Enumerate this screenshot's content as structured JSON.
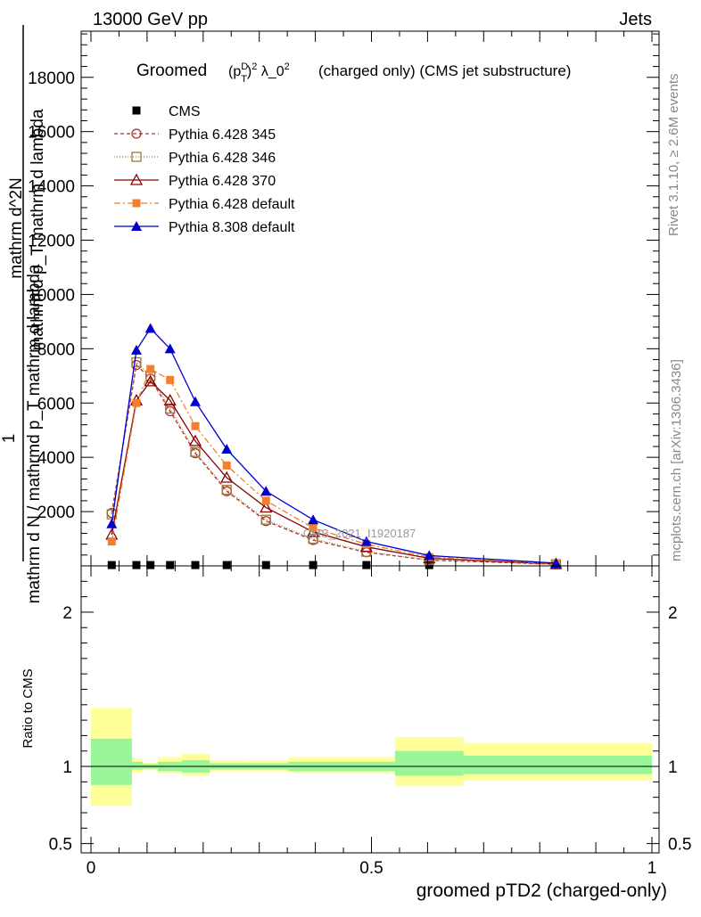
{
  "header": {
    "energy": "13000 GeV pp",
    "process": "Jets"
  },
  "side_labels": {
    "rivet": "Rivet 3.1.10, ≥ 2.6M events",
    "mcplots": "mcplots.cern.ch [arXiv:1306.3436]"
  },
  "chart_data": [
    {
      "type": "line",
      "title_main": "Groomed",
      "title_math": "(p_T^D)^2 λ_0^2",
      "title_rest": "(charged only) (CMS jet substructure)",
      "ylabel_numerator": "1",
      "ylabel_denominator": "mathrm d N / mathrmd p_T mathrm d lambda",
      "ylabel_overlap": "mathrm d^2N",
      "ylabel_overlap2": "mathrm d p_T mathrm d lambda",
      "ylim": [
        0,
        19700
      ],
      "yticks": [
        2000,
        4000,
        6000,
        8000,
        10000,
        12000,
        14000,
        16000,
        18000
      ],
      "ytick_labels": [
        "2000",
        "4000",
        "6000",
        "8000",
        "10000",
        "12000",
        "14000",
        "16000",
        "18000"
      ],
      "watermark": "CMS_2021_I1920187",
      "grid": false,
      "legend_position": "top-left",
      "series": [
        {
          "name": "CMS",
          "color": "#000000",
          "marker": "square-filled",
          "x": [
            0.037,
            0.081,
            0.106,
            0.141,
            0.186,
            0.242,
            0.312,
            0.396,
            0.491,
            0.603,
            0.829
          ],
          "y": [
            30,
            30,
            30,
            30,
            30,
            30,
            30,
            30,
            30,
            30,
            30
          ]
        },
        {
          "name": "Pythia 6.428 345",
          "color": "#b03030",
          "dash": "4,3",
          "marker": "circle-open",
          "x": [
            0.037,
            0.081,
            0.106,
            0.141,
            0.186,
            0.242,
            0.312,
            0.396,
            0.491,
            0.603,
            0.829
          ],
          "y": [
            1950,
            7400,
            6900,
            5700,
            4150,
            2750,
            1650,
            950,
            500,
            210,
            60
          ]
        },
        {
          "name": "Pythia 6.428 346",
          "color": "#9b7a3a",
          "dash": "1,2",
          "marker": "square-open",
          "x": [
            0.037,
            0.081,
            0.106,
            0.141,
            0.186,
            0.242,
            0.312,
            0.396,
            0.491,
            0.603,
            0.829
          ],
          "y": [
            1900,
            7500,
            7000,
            5800,
            4200,
            2800,
            1700,
            1000,
            520,
            220,
            60
          ]
        },
        {
          "name": "Pythia 6.428 370",
          "color": "#8b0000",
          "dash": "",
          "marker": "triangle-open",
          "x": [
            0.037,
            0.081,
            0.106,
            0.141,
            0.186,
            0.242,
            0.312,
            0.396,
            0.491,
            0.603,
            0.829
          ],
          "y": [
            1150,
            6100,
            6800,
            6100,
            4600,
            3250,
            2150,
            1250,
            700,
            280,
            70
          ]
        },
        {
          "name": "Pythia 6.428 default",
          "color": "#f08030",
          "dash": "7,3,2,3",
          "marker": "square-filled",
          "x": [
            0.037,
            0.081,
            0.106,
            0.141,
            0.186,
            0.242,
            0.312,
            0.396,
            0.491,
            0.603,
            0.829
          ],
          "y": [
            900,
            6000,
            7250,
            6850,
            5150,
            3700,
            2400,
            1400,
            800,
            320,
            80
          ]
        },
        {
          "name": "Pythia 8.308 default",
          "color": "#0000cc",
          "dash": "",
          "marker": "triangle-filled",
          "x": [
            0.037,
            0.081,
            0.106,
            0.141,
            0.186,
            0.242,
            0.312,
            0.396,
            0.491,
            0.603,
            0.829
          ],
          "y": [
            1550,
            7950,
            8750,
            8000,
            6050,
            4300,
            2750,
            1700,
            900,
            380,
            100
          ]
        }
      ]
    },
    {
      "type": "area",
      "ylabel": "Ratio to CMS",
      "xlabel": "groomed pTD2 (charged-only)",
      "xlim": [
        0,
        1
      ],
      "ylim": [
        0.44,
        2.3
      ],
      "yticks": [
        0.5,
        1,
        2
      ],
      "ytick_labels": [
        "0.5",
        "1",
        "2"
      ],
      "xticks": [
        0,
        0.5,
        1
      ],
      "xtick_labels": [
        "0",
        "0.5",
        "1"
      ],
      "bands": {
        "edges": [
          0,
          0.073,
          0.092,
          0.119,
          0.162,
          0.212,
          0.272,
          0.352,
          0.44,
          0.542,
          0.664,
          1.0
        ],
        "inner": [
          [
            0.88,
            1.18
          ],
          [
            0.98,
            1.03
          ],
          [
            0.985,
            1.015
          ],
          [
            0.97,
            1.03
          ],
          [
            0.96,
            1.04
          ],
          [
            0.98,
            1.02
          ],
          [
            0.98,
            1.02
          ],
          [
            0.97,
            1.03
          ],
          [
            0.97,
            1.03
          ],
          [
            0.94,
            1.1
          ],
          [
            0.95,
            1.07
          ]
        ],
        "outer": [
          [
            0.745,
            1.38
          ],
          [
            0.96,
            1.05
          ],
          [
            0.975,
            1.025
          ],
          [
            0.955,
            1.06
          ],
          [
            0.94,
            1.08
          ],
          [
            0.97,
            1.04
          ],
          [
            0.97,
            1.04
          ],
          [
            0.96,
            1.06
          ],
          [
            0.96,
            1.06
          ],
          [
            0.875,
            1.19
          ],
          [
            0.91,
            1.15
          ]
        ],
        "inner_color": "#98f598",
        "outer_color": "#ffff99"
      }
    }
  ]
}
